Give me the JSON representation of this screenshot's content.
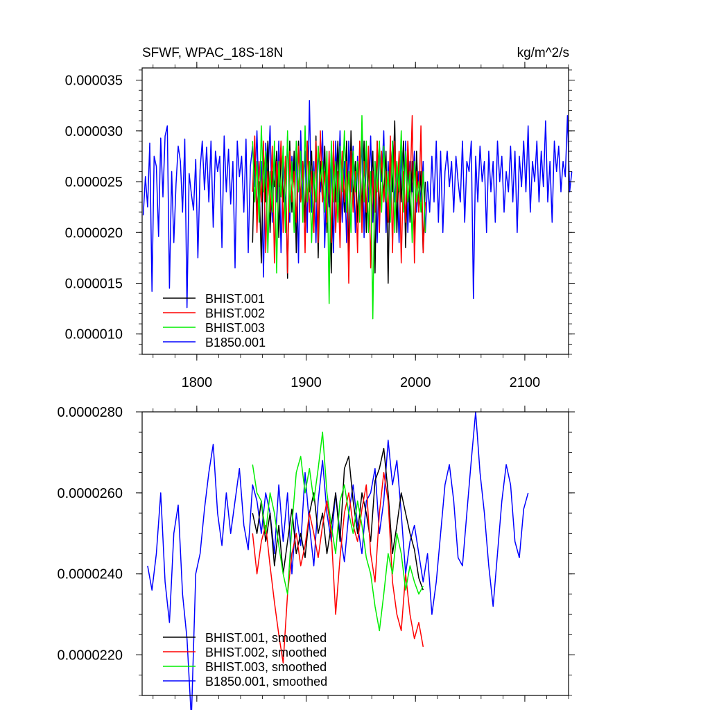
{
  "colors": {
    "BHIST.001": "#000000",
    "BHIST.002": "#ff0000",
    "BHIST.003": "#00ee00",
    "B1850.001": "#0000ff"
  },
  "chart_data": [
    {
      "type": "line",
      "title": "SFWF, WPAC_18S-18N",
      "units": "kg/m^2/s",
      "xlim": [
        1750,
        2140
      ],
      "ylim": [
        8e-06,
        3.62e-05
      ],
      "xticks": [
        1800,
        1900,
        2000,
        2100
      ],
      "xtick_labels": [
        "1800",
        "1900",
        "2000",
        "2100"
      ],
      "yticks": [
        1e-05,
        1.5e-05,
        2e-05,
        2.5e-05,
        3e-05,
        3.5e-05
      ],
      "ytick_labels": [
        "0.000010",
        "0.000015",
        "0.000020",
        "0.000025",
        "0.000030",
        "0.000035"
      ],
      "legend": [
        "BHIST.001",
        "BHIST.002",
        "BHIST.003",
        "B1850.001"
      ],
      "legend_position": "bottom-left",
      "series": [
        {
          "name": "B1850.001",
          "x0": 1751,
          "step": 2,
          "values": [
            2.17e-05,
            2.55e-05,
            2.25e-05,
            2.88e-05,
            1.42e-05,
            2.75e-05,
            2.65e-05,
            1.96e-05,
            2.93e-05,
            2.35e-05,
            2.95e-05,
            3.05e-05,
            1.45e-05,
            2.6e-05,
            1.9e-05,
            2.48e-05,
            2.85e-05,
            2.7e-05,
            2.2e-05,
            2.92e-05,
            1.26e-05,
            2.58e-05,
            2.38e-05,
            2.22e-05,
            2.72e-05,
            1.75e-05,
            2.62e-05,
            2.9e-05,
            2.42e-05,
            2.84e-05,
            2.3e-05,
            2.9e-05,
            2.05e-05,
            2.8e-05,
            2.6e-05,
            2.75e-05,
            1.85e-05,
            2.95e-05,
            2.4e-05,
            2.82e-05,
            2.28e-05,
            2.7e-05,
            1.65e-05,
            2.9e-05,
            2.55e-05,
            2.75e-05,
            2.2e-05,
            2.92e-05,
            1.8e-05,
            2.65e-05,
            2.85e-05,
            2.45e-05,
            3e-05,
            2.2e-05,
            2.7e-05,
            1.56e-05,
            2.88e-05,
            2.5e-05,
            3.05e-05,
            2.1e-05,
            2.8e-05,
            2.3e-05,
            2.9e-05,
            1.8e-05,
            2.7e-05,
            2.2e-05,
            2.95e-05,
            2.1e-05,
            2.75e-05,
            2.5e-05,
            2.85e-05,
            1.7e-05,
            3e-05,
            2.3e-05,
            2.8e-05,
            2e-05,
            3.3e-05,
            2.2e-05,
            2.7e-05,
            1.9e-05,
            2.85e-05,
            2.4e-05,
            3e-05,
            1.85e-05,
            2.6e-05,
            2.25e-05,
            2.8e-05,
            1.8e-05,
            2.9e-05,
            2.3e-05,
            3e-05,
            2.1e-05,
            2.7e-05,
            1.9e-05,
            2.9e-05,
            2.4e-05,
            2.85e-05,
            2e-05,
            2.75e-05,
            2.2e-05,
            2.95e-05,
            1.95e-05,
            2.8e-05,
            2.3e-05,
            2.95e-05,
            2.1e-05,
            2.7e-05,
            1.9e-05,
            2.85e-05,
            2.5e-05,
            3e-05,
            2e-05,
            2.7e-05,
            2.2e-05,
            2.9e-05,
            2.3e-05,
            2.6e-05,
            1.9e-05,
            2.8e-05,
            2.3e-05,
            2.9e-05,
            2e-05,
            2.7e-05,
            2.4e-05,
            2.8e-05,
            2.2e-05,
            2.6e-05,
            2.3e-05,
            2.7e-05,
            2e-05,
            2.5e-05,
            2.2e-05,
            2.75e-05,
            2.3e-05,
            2.9e-05,
            2.1e-05,
            2.8e-05,
            2e-05,
            2.6e-05,
            2.8e-05,
            2.45e-05,
            2.7e-05,
            2.2e-05,
            2.75e-05,
            2.5e-05,
            2.3e-05,
            2.9e-05,
            2.1e-05,
            2.7e-05,
            2.6e-05,
            2.9e-05,
            1.35e-05,
            2.75e-05,
            2.3e-05,
            2.85e-05,
            2.5e-05,
            2.7e-05,
            2e-05,
            2.8e-05,
            2.4e-05,
            2.7e-05,
            2.1e-05,
            2.9e-05,
            2.5e-05,
            2.75e-05,
            2.2e-05,
            2.6e-05,
            2.4e-05,
            2.85e-05,
            2.3e-05,
            2.8e-05,
            2e-05,
            2.75e-05,
            2.45e-05,
            2.9e-05,
            2.4e-05,
            3.05e-05,
            2.2e-05,
            2.7e-05,
            2.5e-05,
            2.9e-05,
            2.3e-05,
            2.8e-05,
            2.45e-05,
            3.1e-05,
            2.3e-05,
            2.7e-05,
            2.1e-05,
            2.9e-05,
            2.6e-05,
            2.85e-05,
            2.4e-05,
            2.7e-05,
            2.55e-05,
            3.15e-05,
            2.4e-05,
            2.6e-05
          ]
        },
        {
          "name": "BHIST.001",
          "x0": 1851,
          "step": 2,
          "values": [
            1.9e-05,
            2.85e-05,
            2.2e-05,
            2.5e-05,
            1.7e-05,
            2.8e-05,
            2.3e-05,
            2.9e-05,
            2e-05,
            2.6e-05,
            2.45e-05,
            2.8e-05,
            1.95e-05,
            2.85e-05,
            2.3e-05,
            2.7e-05,
            1.55e-05,
            2.9e-05,
            2.2e-05,
            2.8e-05,
            1.8e-05,
            2.9e-05,
            2.3e-05,
            2.7e-05,
            2.1e-05,
            2.9e-05,
            2.4e-05,
            2.8e-05,
            2e-05,
            2.95e-05,
            1.75e-05,
            2.7e-05,
            2.3e-05,
            2.85e-05,
            2e-05,
            2.7e-05,
            1.6e-05,
            2.8e-05,
            2.3e-05,
            2.9e-05,
            2.1e-05,
            2.8e-05,
            2.2e-05,
            2.9e-05,
            1.75e-05,
            3e-05,
            2.3e-05,
            2.7e-05,
            2.1e-05,
            2.85e-05,
            2.2e-05,
            2.9e-05,
            2e-05,
            2.7e-05,
            2.4e-05,
            2.8e-05,
            1.6e-05,
            2.9e-05,
            2.2e-05,
            2.7e-05,
            2.35e-05,
            2.8e-05,
            1.5e-05,
            2.85e-05,
            2.4e-05,
            3.1e-05,
            2e-05,
            2.7e-05,
            2.3e-05,
            2.9e-05,
            1.85e-05,
            2.8e-05,
            2.1e-05,
            2.7e-05,
            1.9e-05,
            2.8e-05,
            2.2e-05,
            2.6e-05,
            1.8e-05,
            2.5e-05
          ]
        },
        {
          "name": "BHIST.002",
          "x0": 1851,
          "step": 2,
          "values": [
            2.4e-05,
            2.95e-05,
            2e-05,
            2.7e-05,
            2.3e-05,
            2.9e-05,
            1.8e-05,
            2.6e-05,
            2.2e-05,
            2.85e-05,
            1.7e-05,
            2.7e-05,
            2.45e-05,
            2.9e-05,
            2e-05,
            2.75e-05,
            1.6e-05,
            2.8e-05,
            2.3e-05,
            2.6e-05,
            2.1e-05,
            2.85e-05,
            2.3e-05,
            2.7e-05,
            1.8e-05,
            2.9e-05,
            2.2e-05,
            2.6e-05,
            2e-05,
            2.9e-05,
            1.9e-05,
            3e-05,
            2.3e-05,
            2.6e-05,
            2.1e-05,
            2.8e-05,
            1.9e-05,
            2.9e-05,
            2e-05,
            2.6e-05,
            1.85e-05,
            2.8e-05,
            2.3e-05,
            2.7e-05,
            1.5e-05,
            2.8e-05,
            2.2e-05,
            2.6e-05,
            1.8e-05,
            2.9e-05,
            2e-05,
            2.7e-05,
            2.2e-05,
            2.85e-05,
            1.65e-05,
            2.6e-05,
            2.2e-05,
            2.9e-05,
            2e-05,
            2.8e-05,
            2.3e-05,
            2.6e-05,
            2.1e-05,
            2.95e-05,
            1.8e-05,
            2.9e-05,
            2.3e-05,
            2.8e-05,
            1.7e-05,
            2.6e-05,
            2.1e-05,
            2.9e-05,
            2.4e-05,
            3.15e-05,
            1.7e-05,
            2.6e-05,
            2.2e-05,
            3.05e-05,
            1.8e-05,
            2.3e-05
          ]
        },
        {
          "name": "BHIST.003",
          "x0": 1851,
          "step": 2,
          "values": [
            2.9e-05,
            2.3e-05,
            2.7e-05,
            2.1e-05,
            3.05e-05,
            2.4e-05,
            2.8e-05,
            1.8e-05,
            2.6e-05,
            2.2e-05,
            2.9e-05,
            1.6e-05,
            2.7e-05,
            2.35e-05,
            2.85e-05,
            2e-05,
            3e-05,
            2.2e-05,
            2.7e-05,
            2e-05,
            2.9e-05,
            2.4e-05,
            2.8e-05,
            2.1e-05,
            3.05e-05,
            2.3e-05,
            2.7e-05,
            1.9e-05,
            2.6e-05,
            2.3e-05,
            2.85e-05,
            2.5e-05,
            2.7e-05,
            2.2e-05,
            2.8e-05,
            1.3e-05,
            2.9e-05,
            2.3e-05,
            2.7e-05,
            2.1e-05,
            2.85e-05,
            2.4e-05,
            3e-05,
            2.2e-05,
            2.6e-05,
            2e-05,
            2.8e-05,
            2.4e-05,
            2.7e-05,
            2.1e-05,
            3.15e-05,
            2.3e-05,
            2.9e-05,
            2e-05,
            2.6e-05,
            1.15e-05,
            2.7e-05,
            2.4e-05,
            2.9e-05,
            2.2e-05,
            2.85e-05,
            2.3e-05,
            2.6e-05,
            2.1e-05,
            2.9e-05,
            2e-05,
            2.7e-05,
            2.4e-05,
            3e-05,
            2.2e-05,
            2.8e-05,
            2.3e-05,
            2.6e-05,
            1.9e-05,
            2.7e-05,
            2.3e-05,
            2.5e-05,
            2.2e-05,
            2.6e-05,
            2e-05
          ]
        }
      ]
    },
    {
      "type": "line",
      "title": "",
      "xlim": [
        1750,
        2140
      ],
      "ylim": [
        2.1e-05,
        2.8e-05
      ],
      "xticks": [
        1800,
        1900,
        2000,
        2100
      ],
      "yticks": [
        2.2e-05,
        2.4e-05,
        2.6e-05,
        2.8e-05
      ],
      "ytick_labels": [
        "0.0000220",
        "0.0000240",
        "0.0000260",
        "0.0000280"
      ],
      "legend": [
        "BHIST.001, smoothed",
        "BHIST.002, smoothed",
        "BHIST.003, smoothed",
        "B1850.001, smoothed"
      ],
      "legend_position": "bottom-left",
      "series": [
        {
          "name": "B1850.001, smoothed",
          "x0": 1755,
          "step": 4,
          "values": [
            2.42e-05,
            2.36e-05,
            2.45e-05,
            2.6e-05,
            2.38e-05,
            2.28e-05,
            2.5e-05,
            2.57e-05,
            2.35e-05,
            2.24e-05,
            2.04e-05,
            2.4e-05,
            2.45e-05,
            2.56e-05,
            2.65e-05,
            2.72e-05,
            2.55e-05,
            2.47e-05,
            2.6e-05,
            2.5e-05,
            2.58e-05,
            2.66e-05,
            2.52e-05,
            2.46e-05,
            2.62e-05,
            2.58e-05,
            2.5e-05,
            2.6e-05,
            2.55e-05,
            2.45e-05,
            2.62e-05,
            2.48e-05,
            2.6e-05,
            2.4e-05,
            2.55e-05,
            2.47e-05,
            2.65e-05,
            2.52e-05,
            2.42e-05,
            2.58e-05,
            2.68e-05,
            2.55e-05,
            2.48e-05,
            2.6e-05,
            2.5e-05,
            2.43e-05,
            2.55e-05,
            2.62e-05,
            2.52e-05,
            2.45e-05,
            2.58e-05,
            2.6e-05,
            2.66e-05,
            2.5e-05,
            2.58e-05,
            2.73e-05,
            2.62e-05,
            2.68e-05,
            2.55e-05,
            2.4e-05,
            2.48e-05,
            2.52e-05,
            2.45e-05,
            2.38e-05,
            2.45e-05,
            2.3e-05,
            2.38e-05,
            2.5e-05,
            2.62e-05,
            2.67e-05,
            2.58e-05,
            2.44e-05,
            2.42e-05,
            2.55e-05,
            2.68e-05,
            2.8e-05,
            2.65e-05,
            2.55e-05,
            2.42e-05,
            2.32e-05,
            2.45e-05,
            2.58e-05,
            2.67e-05,
            2.62e-05,
            2.48e-05,
            2.44e-05,
            2.56e-05,
            2.6e-05
          ]
        },
        {
          "name": "BHIST.001, smoothed",
          "x0": 1851,
          "step": 4,
          "values": [
            2.55e-05,
            2.5e-05,
            2.58e-05,
            2.48e-05,
            2.55e-05,
            2.42e-05,
            2.52e-05,
            2.4e-05,
            2.48e-05,
            2.56e-05,
            2.45e-05,
            2.5e-05,
            2.44e-05,
            2.55e-05,
            2.6e-05,
            2.5e-05,
            2.55e-05,
            2.45e-05,
            2.52e-05,
            2.6e-05,
            2.48e-05,
            2.66e-05,
            2.69e-05,
            2.58e-05,
            2.5e-05,
            2.6e-05,
            2.55e-05,
            2.48e-05,
            2.63e-05,
            2.66e-05,
            2.71e-05,
            2.6e-05,
            2.45e-05,
            2.52e-05,
            2.6e-05,
            2.55e-05,
            2.5e-05,
            2.46e-05,
            2.39e-05,
            2.36e-05
          ]
        },
        {
          "name": "BHIST.002, smoothed",
          "x0": 1851,
          "step": 4,
          "values": [
            2.5e-05,
            2.4e-05,
            2.48e-05,
            2.52e-05,
            2.42e-05,
            2.33e-05,
            2.25e-05,
            2.18e-05,
            2.35e-05,
            2.45e-05,
            2.5e-05,
            2.42e-05,
            2.47e-05,
            2.55e-05,
            2.5e-05,
            2.44e-05,
            2.52e-05,
            2.58e-05,
            2.5e-05,
            2.3e-05,
            2.44e-05,
            2.55e-05,
            2.6e-05,
            2.52e-05,
            2.48e-05,
            2.56e-05,
            2.62e-05,
            2.45e-05,
            2.38e-05,
            2.55e-05,
            2.65e-05,
            2.58e-05,
            2.38e-05,
            2.3e-05,
            2.26e-05,
            2.4e-05,
            2.3e-05,
            2.24e-05,
            2.28e-05,
            2.22e-05
          ]
        },
        {
          "name": "BHIST.003, smoothed",
          "x0": 1851,
          "step": 4,
          "values": [
            2.67e-05,
            2.6e-05,
            2.58e-05,
            2.5e-05,
            2.6e-05,
            2.55e-05,
            2.47e-05,
            2.4e-05,
            2.35e-05,
            2.52e-05,
            2.65e-05,
            2.69e-05,
            2.6e-05,
            2.66e-05,
            2.58e-05,
            2.66e-05,
            2.75e-05,
            2.6e-05,
            2.52e-05,
            2.45e-05,
            2.58e-05,
            2.62e-05,
            2.55e-05,
            2.5e-05,
            2.58e-05,
            2.52e-05,
            2.44e-05,
            2.4e-05,
            2.32e-05,
            2.26e-05,
            2.35e-05,
            2.45e-05,
            2.4e-05,
            2.5e-05,
            2.45e-05,
            2.36e-05,
            2.42e-05,
            2.38e-05,
            2.35e-05,
            2.37e-05
          ]
        }
      ]
    }
  ]
}
